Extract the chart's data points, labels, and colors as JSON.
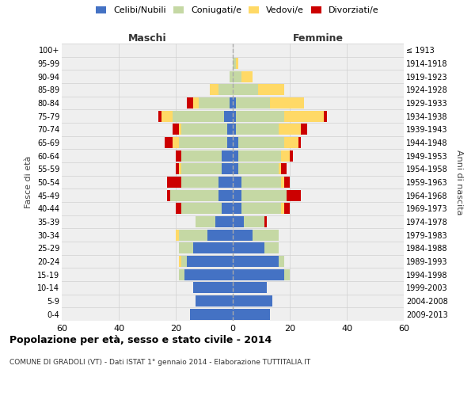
{
  "age_groups": [
    "0-4",
    "5-9",
    "10-14",
    "15-19",
    "20-24",
    "25-29",
    "30-34",
    "35-39",
    "40-44",
    "45-49",
    "50-54",
    "55-59",
    "60-64",
    "65-69",
    "70-74",
    "75-79",
    "80-84",
    "85-89",
    "90-94",
    "95-99",
    "100+"
  ],
  "birth_years": [
    "2009-2013",
    "2004-2008",
    "1999-2003",
    "1994-1998",
    "1989-1993",
    "1984-1988",
    "1979-1983",
    "1974-1978",
    "1969-1973",
    "1964-1968",
    "1959-1963",
    "1954-1958",
    "1949-1953",
    "1944-1948",
    "1939-1943",
    "1934-1938",
    "1929-1933",
    "1924-1928",
    "1919-1923",
    "1914-1918",
    "≤ 1913"
  ],
  "males": {
    "celibi": [
      15,
      13,
      14,
      17,
      16,
      14,
      9,
      6,
      4,
      5,
      5,
      4,
      4,
      2,
      2,
      3,
      1,
      0,
      0,
      0,
      0
    ],
    "coniugati": [
      0,
      0,
      0,
      2,
      2,
      5,
      10,
      7,
      14,
      17,
      13,
      14,
      14,
      17,
      16,
      18,
      11,
      5,
      1,
      0,
      0
    ],
    "vedovi": [
      0,
      0,
      0,
      0,
      1,
      0,
      1,
      0,
      0,
      0,
      0,
      1,
      0,
      2,
      1,
      4,
      2,
      3,
      0,
      0,
      0
    ],
    "divorziati": [
      0,
      0,
      0,
      0,
      0,
      0,
      0,
      0,
      2,
      1,
      5,
      1,
      2,
      3,
      2,
      1,
      2,
      0,
      0,
      0,
      0
    ]
  },
  "females": {
    "nubili": [
      13,
      14,
      12,
      18,
      16,
      11,
      7,
      4,
      3,
      3,
      3,
      2,
      2,
      2,
      1,
      1,
      1,
      0,
      0,
      0,
      0
    ],
    "coniugate": [
      0,
      0,
      0,
      2,
      2,
      5,
      9,
      7,
      14,
      16,
      14,
      14,
      15,
      16,
      15,
      17,
      12,
      9,
      3,
      1,
      0
    ],
    "vedove": [
      0,
      0,
      0,
      0,
      0,
      0,
      0,
      0,
      1,
      0,
      1,
      1,
      3,
      5,
      8,
      14,
      12,
      9,
      4,
      1,
      0
    ],
    "divorziate": [
      0,
      0,
      0,
      0,
      0,
      0,
      0,
      1,
      2,
      5,
      2,
      2,
      1,
      1,
      2,
      1,
      0,
      0,
      0,
      0,
      0
    ]
  },
  "colors": {
    "celibi": "#4472c4",
    "coniugati": "#c5d8a4",
    "vedovi": "#ffd966",
    "divorziati": "#cc0000"
  },
  "xlim": 60,
  "title": "Popolazione per età, sesso e stato civile - 2014",
  "subtitle": "COMUNE DI GRADOLI (VT) - Dati ISTAT 1° gennaio 2014 - Elaborazione TUTTITALIA.IT",
  "ylabel_left": "Fasce di età",
  "ylabel_right": "Anni di nascita",
  "label_maschi": "Maschi",
  "label_femmine": "Femmine",
  "legend_labels": [
    "Celibi/Nubili",
    "Coniugati/e",
    "Vedovi/e",
    "Divorziati/e"
  ],
  "bg_color": "#ffffff",
  "plot_bg": "#efefef",
  "grid_color": "#d0d0d0"
}
